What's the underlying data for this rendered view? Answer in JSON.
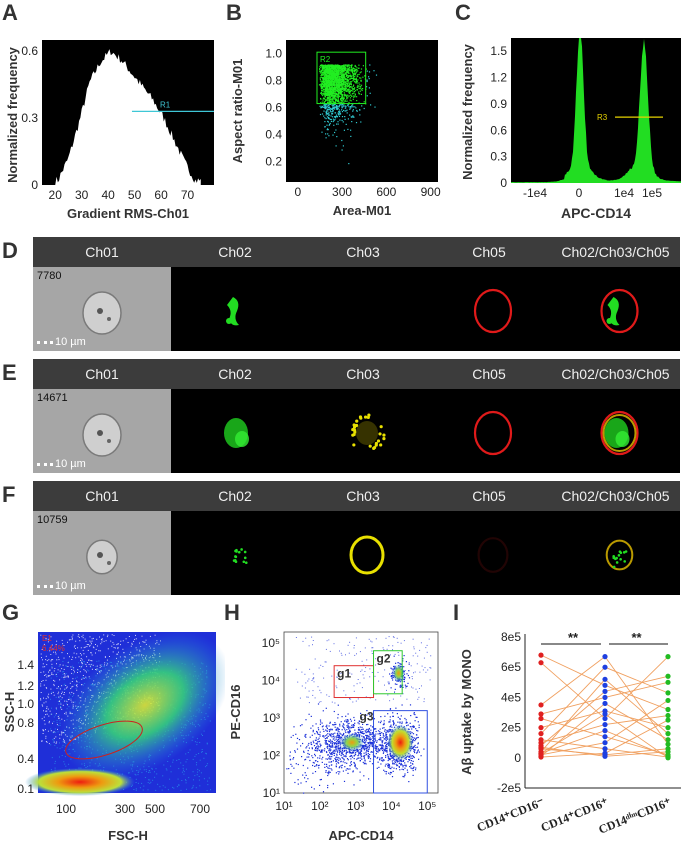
{
  "panel_labels": {
    "A": "A",
    "B": "B",
    "C": "C",
    "D": "D",
    "E": "E",
    "F": "F",
    "G": "G",
    "H": "H",
    "I": "I"
  },
  "channels": [
    "Ch01",
    "Ch02",
    "Ch03",
    "Ch05",
    "Ch02/Ch03/Ch05"
  ],
  "cells": [
    {
      "panel": "D",
      "id": "7780",
      "scale": "10 µm"
    },
    {
      "panel": "E",
      "id": "14671",
      "scale": "10 µm"
    },
    {
      "panel": "F",
      "id": "10759",
      "scale": "10 µm"
    }
  ],
  "colors": {
    "histogram": "#ffffff",
    "histogram_gate": "#3fc7d6",
    "scatter_high": "#22ee22",
    "scatter_low": "#30c8cf",
    "apc_hist": "#22dd22",
    "apc_gate": "#e6d200",
    "g1_gate": "#e03030",
    "g2_gate": "#2ec82e",
    "g3_gate": "#3050e0",
    "red_points": "#e02020",
    "blue_points": "#1f3fe0",
    "green_points": "#22bb22",
    "lines": "#f0a060"
  },
  "chart_data": [
    {
      "panel": "A",
      "type": "histogram",
      "xlabel": "Gradient RMS-Ch01",
      "ylabel": "Normalized frequency",
      "xticks": [
        "20",
        "30",
        "40",
        "50",
        "60",
        "70"
      ],
      "yticks": [
        "0",
        "0.3",
        "0.6"
      ],
      "xlim": [
        15,
        80
      ],
      "ylim": [
        0,
        0.65
      ],
      "x": [
        21,
        25,
        29,
        33,
        37,
        41,
        45,
        49,
        53,
        57,
        61,
        65,
        69,
        73
      ],
      "values": [
        0.02,
        0.12,
        0.28,
        0.46,
        0.55,
        0.6,
        0.56,
        0.5,
        0.44,
        0.38,
        0.3,
        0.2,
        0.1,
        0.02
      ],
      "gate": {
        "label": "R1",
        "from": 49,
        "to": 80,
        "y": 0.33
      }
    },
    {
      "panel": "B",
      "type": "scatter",
      "xlabel": "Area-M01",
      "ylabel": "Aspect ratio-M01",
      "xticks": [
        "0",
        "300",
        "600",
        "900"
      ],
      "yticks": [
        "0.2",
        "0.4",
        "0.6",
        "0.8",
        "1.0"
      ],
      "xlim": [
        -80,
        950
      ],
      "ylim": [
        0.05,
        1.1
      ],
      "gate": {
        "label": "R2",
        "x": [
          130,
          460
        ],
        "y": [
          0.63,
          1.01
        ]
      }
    },
    {
      "panel": "C",
      "type": "histogram",
      "xlabel": "APC-CD14",
      "ylabel": "Normalized frequency",
      "xticks": [
        "-1e4",
        "0",
        "1e4",
        "1e5"
      ],
      "yticks": [
        "0",
        "0.3",
        "0.6",
        "0.9",
        "1.2",
        "1.5"
      ],
      "ylim": [
        0,
        1.65
      ],
      "peaks": [
        {
          "x": "0",
          "height": 1.55
        },
        {
          "x": "1e5",
          "height": 1.4
        }
      ],
      "gate": {
        "label": "R3",
        "from": "1e4",
        "to": "1e5",
        "y": 0.75
      }
    },
    {
      "panel": "G",
      "type": "scatter",
      "xlabel": "FSC-H",
      "ylabel": "SSC-H",
      "xticks": [
        "100",
        "300",
        "500",
        "700"
      ],
      "yticks": [
        "0.1",
        "0.4",
        "0.8",
        "1.0",
        "1.2",
        "1.4"
      ],
      "gate": {
        "label": "E1",
        "percent": "6.44%"
      }
    },
    {
      "panel": "H",
      "type": "scatter",
      "xlabel": "APC-CD14",
      "ylabel": "PE-CD16",
      "xticks": [
        "10¹",
        "10²",
        "10³",
        "10⁴",
        "10⁵"
      ],
      "yticks": [
        "10¹",
        "10²",
        "10³",
        "10⁴",
        "10⁵"
      ],
      "xlim": [
        1,
        5.3
      ],
      "ylim": [
        1,
        5.3
      ],
      "gates": [
        {
          "label": "g1",
          "x": [
            2.4,
            3.5
          ],
          "y": [
            3.55,
            4.4
          ]
        },
        {
          "label": "g2",
          "x": [
            3.5,
            4.3
          ],
          "y": [
            3.65,
            4.8
          ]
        },
        {
          "label": "g3",
          "x": [
            3.5,
            5.0
          ],
          "y": [
            1.0,
            3.2
          ]
        }
      ]
    },
    {
      "panel": "I",
      "type": "scatter",
      "ylabel": "Aβ uptake by MONO",
      "categories": [
        "CD14⁺CD16⁻",
        "CD14⁺CD16⁺",
        "CD14ᵈⁱᵐCD16⁺"
      ],
      "yticks": [
        "-2e5",
        "0",
        "2e5",
        "4e5",
        "6e5",
        "8e5"
      ],
      "ylim": [
        -200000.0,
        820000.0
      ],
      "significance": [
        "**",
        "**"
      ],
      "series": [
        {
          "values": [
            680000.0,
            630000.0,
            350000.0,
            290000.0,
            260000.0,
            200000.0,
            160000.0,
            120000.0,
            100000.0,
            80000.0,
            60000.0,
            40000.0,
            30000.0,
            20000.0,
            10000.0,
            5000.0,
            30000.0,
            70000.0
          ]
        },
        {
          "values": [
            670000.0,
            600000.0,
            520000.0,
            480000.0,
            440000.0,
            400000.0,
            360000.0,
            310000.0,
            290000.0,
            260000.0,
            220000.0,
            180000.0,
            140000.0,
            100000.0,
            60000.0,
            30000.0,
            20000.0,
            10000.0
          ]
        },
        {
          "values": [
            670000.0,
            540000.0,
            500000.0,
            430000.0,
            380000.0,
            320000.0,
            280000.0,
            250000.0,
            200000.0,
            160000.0,
            120000.0,
            90000.0,
            60000.0,
            40000.0,
            20000.0,
            10000.0,
            5000.0,
            0
          ]
        }
      ]
    }
  ]
}
